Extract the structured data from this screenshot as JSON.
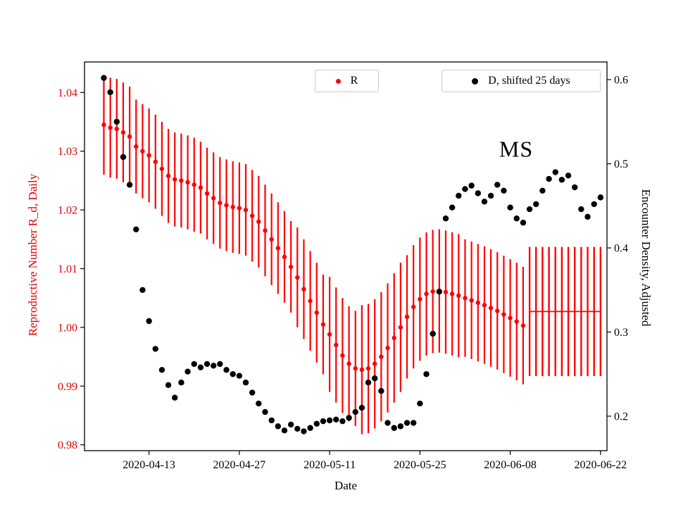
{
  "chart_data": {
    "type": "scatter",
    "annotation": "MS",
    "xlabel": "Date",
    "x_range": [
      "2020-04-03",
      "2020-06-23"
    ],
    "x_ticks": [
      "2020-04-13",
      "2020-04-27",
      "2020-05-11",
      "2020-05-25",
      "2020-06-08",
      "2020-06-22"
    ],
    "grid": false,
    "legend": [
      {
        "label": "R",
        "marker_color": "#ff0000"
      },
      {
        "label": "D, shifted 25 days",
        "marker_color": "#000000"
      }
    ],
    "left_axis": {
      "label": "Reproductive Number R_d, Daily",
      "color": "#e60000",
      "ticks": [
        0.98,
        0.99,
        1.0,
        1.01,
        1.02,
        1.03,
        1.04
      ],
      "lim": [
        0.979,
        1.0452
      ]
    },
    "right_axis": {
      "label": "Encounter Density, Adjusted",
      "color": "#000000",
      "ticks": [
        0.2,
        0.3,
        0.4,
        0.5,
        0.6
      ],
      "lim": [
        0.159,
        0.621
      ]
    },
    "area": {
      "l": 120,
      "t": 88,
      "r": 862,
      "b": 640
    },
    "series": [
      {
        "name": "R",
        "axis": "left",
        "type": "scatter_errorbar",
        "color": "#ff0000",
        "marker_r": 3.2,
        "start": "2020-04-06",
        "values": [
          1.0345,
          1.034,
          1.0338,
          1.0332,
          1.0325,
          1.0308,
          1.03,
          1.0293,
          1.0282,
          1.027,
          1.0258,
          1.0252,
          1.025,
          1.0247,
          1.0243,
          1.0238,
          1.0228,
          1.022,
          1.0212,
          1.0208,
          1.0205,
          1.0203,
          1.02,
          1.019,
          1.018,
          1.0165,
          1.015,
          1.0135,
          1.012,
          1.0103,
          1.0085,
          1.0065,
          1.0045,
          1.0025,
          1.0005,
          0.9988,
          0.997,
          0.9952,
          0.9938,
          0.993,
          0.9928,
          0.993,
          0.9938,
          0.995,
          0.9965,
          0.9982,
          1.0,
          1.0018,
          1.0035,
          1.0048,
          1.0057,
          1.0061,
          1.0062,
          1.006,
          1.0057,
          1.0054,
          1.005,
          1.0046,
          1.0042,
          1.0038,
          1.0033,
          1.0028,
          1.0022,
          1.0016,
          1.001,
          1.0003
        ],
        "err": [
          0.0085,
          0.0085,
          0.0085,
          0.0085,
          0.0085,
          0.008,
          0.008,
          0.008,
          0.008,
          0.008,
          0.008,
          0.008,
          0.008,
          0.008,
          0.008,
          0.0078,
          0.0078,
          0.0078,
          0.0078,
          0.0078,
          0.0078,
          0.0078,
          0.0078,
          0.0078,
          0.0078,
          0.0078,
          0.0078,
          0.0078,
          0.0078,
          0.0078,
          0.0085,
          0.0085,
          0.0085,
          0.0085,
          0.0085,
          0.0098,
          0.0098,
          0.0098,
          0.0098,
          0.0098,
          0.011,
          0.011,
          0.011,
          0.011,
          0.011,
          0.011,
          0.011,
          0.0105,
          0.0105,
          0.0105,
          0.0105,
          0.0105,
          0.0105,
          0.0105,
          0.0105,
          0.0105,
          0.01,
          0.01,
          0.01,
          0.01,
          0.01,
          0.01,
          0.01,
          0.01,
          0.01,
          0.01
        ]
      },
      {
        "name": "R forecast flat segment",
        "axis": "left",
        "type": "flat_errorbar",
        "color": "#ff0000",
        "start": "2020-06-11",
        "end": "2020-06-22",
        "value": 1.0027,
        "err": 0.011
      },
      {
        "name": "D, shifted 25 days",
        "axis": "right",
        "type": "scatter",
        "color": "#000000",
        "marker_r": 4.2,
        "start": "2020-04-06",
        "values": [
          0.602,
          0.585,
          0.55,
          0.508,
          0.475,
          0.422,
          0.35,
          0.313,
          0.28,
          0.255,
          0.237,
          0.222,
          0.24,
          0.253,
          0.262,
          0.258,
          0.262,
          0.26,
          0.262,
          0.255,
          0.25,
          0.248,
          0.24,
          0.228,
          0.215,
          0.205,
          0.195,
          0.188,
          0.183,
          0.19,
          0.185,
          0.182,
          0.186,
          0.191,
          0.194,
          0.195,
          0.196,
          0.194,
          0.198,
          0.205,
          0.21,
          0.24,
          0.245,
          0.23,
          0.192,
          0.186,
          0.188,
          0.192,
          0.192,
          0.215,
          0.25,
          0.298,
          0.348,
          0.435,
          0.448,
          0.462,
          0.47,
          0.474,
          0.465,
          0.455,
          0.462,
          0.475,
          0.468,
          0.448,
          0.435,
          0.43,
          0.446,
          0.452,
          0.468,
          0.482,
          0.49,
          0.481,
          0.486,
          0.472,
          0.446,
          0.437,
          0.452,
          0.46
        ]
      }
    ]
  }
}
